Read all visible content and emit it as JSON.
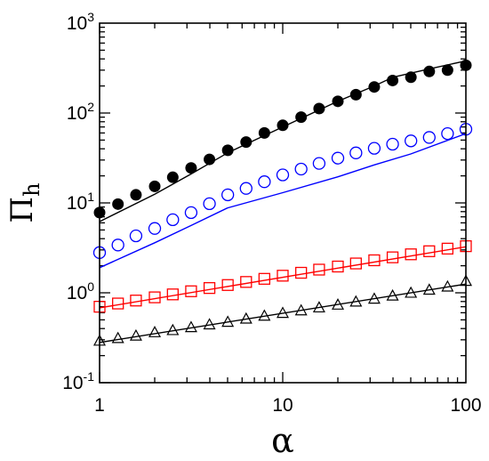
{
  "chart_data": {
    "type": "scatter",
    "xscale": "log",
    "yscale": "log",
    "xlim": [
      1,
      100
    ],
    "ylim": [
      0.1,
      1000
    ],
    "xlabel": "α",
    "ylabel": {
      "main": "Π",
      "sub": "h"
    },
    "x_ticks": [
      {
        "value": 1,
        "label": "1"
      },
      {
        "value": 10,
        "label": "10"
      },
      {
        "value": 100,
        "label": "100"
      }
    ],
    "y_ticks": [
      {
        "value": 0.1,
        "base": "10",
        "exp": "-1"
      },
      {
        "value": 1,
        "base": "10",
        "exp": "0"
      },
      {
        "value": 10,
        "base": "10",
        "exp": "1"
      },
      {
        "value": 100,
        "base": "10",
        "exp": "2"
      },
      {
        "value": 1000,
        "base": "10",
        "exp": "3"
      }
    ],
    "grid": false,
    "series": [
      {
        "marker": "filled-circle",
        "color": "#000000",
        "x": [
          1,
          1.26,
          1.58,
          2,
          2.51,
          3.16,
          3.98,
          5.01,
          6.31,
          7.94,
          10,
          12.6,
          15.8,
          20,
          25.1,
          31.6,
          39.8,
          50.1,
          63.1,
          79.4,
          100
        ],
        "y": [
          7.8,
          9.7,
          12.3,
          15.3,
          19.3,
          24.5,
          30.5,
          38.5,
          47.5,
          60,
          73,
          90,
          112,
          135,
          160,
          195,
          230,
          250,
          290,
          300,
          340
        ]
      },
      {
        "marker": "line",
        "color": "#000000",
        "x": [
          1,
          2,
          3.16,
          5,
          10,
          20,
          31.6,
          40,
          63.1,
          100
        ],
        "y": [
          6.2,
          12.5,
          21,
          36,
          70,
          135,
          200,
          250,
          310,
          380
        ]
      },
      {
        "marker": "open-circle",
        "color": "#0000ff",
        "x": [
          1,
          1.26,
          1.58,
          2,
          2.51,
          3.16,
          3.98,
          5.01,
          6.31,
          7.94,
          10,
          12.6,
          15.8,
          20,
          25.1,
          31.6,
          39.8,
          50.1,
          63.1,
          79.4,
          100
        ],
        "y": [
          2.8,
          3.4,
          4.3,
          5.2,
          6.5,
          7.8,
          9.8,
          12.3,
          14.5,
          17.2,
          20.5,
          23.8,
          27.5,
          31.5,
          36,
          40.5,
          45,
          49,
          53.5,
          59,
          66
        ]
      },
      {
        "marker": "line",
        "color": "#0000ff",
        "x": [
          1,
          2,
          3.16,
          5,
          10,
          20,
          31.6,
          50,
          100
        ],
        "y": [
          1.9,
          3.6,
          5.6,
          8.8,
          13,
          19.5,
          26.5,
          35,
          59
        ]
      },
      {
        "marker": "open-square",
        "color": "#ff0000",
        "x": [
          1,
          1.26,
          1.58,
          2,
          2.51,
          3.16,
          3.98,
          5.01,
          6.31,
          7.94,
          10,
          12.6,
          15.8,
          20,
          25.1,
          31.6,
          39.8,
          50.1,
          63.1,
          79.4,
          100
        ],
        "y": [
          0.7,
          0.76,
          0.82,
          0.89,
          0.96,
          1.04,
          1.13,
          1.22,
          1.32,
          1.43,
          1.55,
          1.67,
          1.81,
          1.96,
          2.12,
          2.3,
          2.48,
          2.68,
          2.9,
          3.1,
          3.3
        ]
      },
      {
        "marker": "line",
        "color": "#ff0000",
        "x": [
          1,
          100
        ],
        "y": [
          0.68,
          3.25
        ]
      },
      {
        "marker": "open-triangle",
        "color": "#000000",
        "x": [
          1,
          1.26,
          1.58,
          2,
          2.51,
          3.16,
          3.98,
          5.01,
          6.31,
          7.94,
          10,
          12.6,
          15.8,
          20,
          25.1,
          31.6,
          39.8,
          50.1,
          63.1,
          79.4,
          100
        ],
        "y": [
          0.29,
          0.31,
          0.33,
          0.36,
          0.38,
          0.41,
          0.44,
          0.47,
          0.51,
          0.55,
          0.59,
          0.63,
          0.68,
          0.73,
          0.79,
          0.85,
          0.92,
          0.99,
          1.07,
          1.16,
          1.34
        ]
      },
      {
        "marker": "line",
        "color": "#000000",
        "x": [
          1,
          100
        ],
        "y": [
          0.28,
          1.25
        ]
      }
    ]
  }
}
